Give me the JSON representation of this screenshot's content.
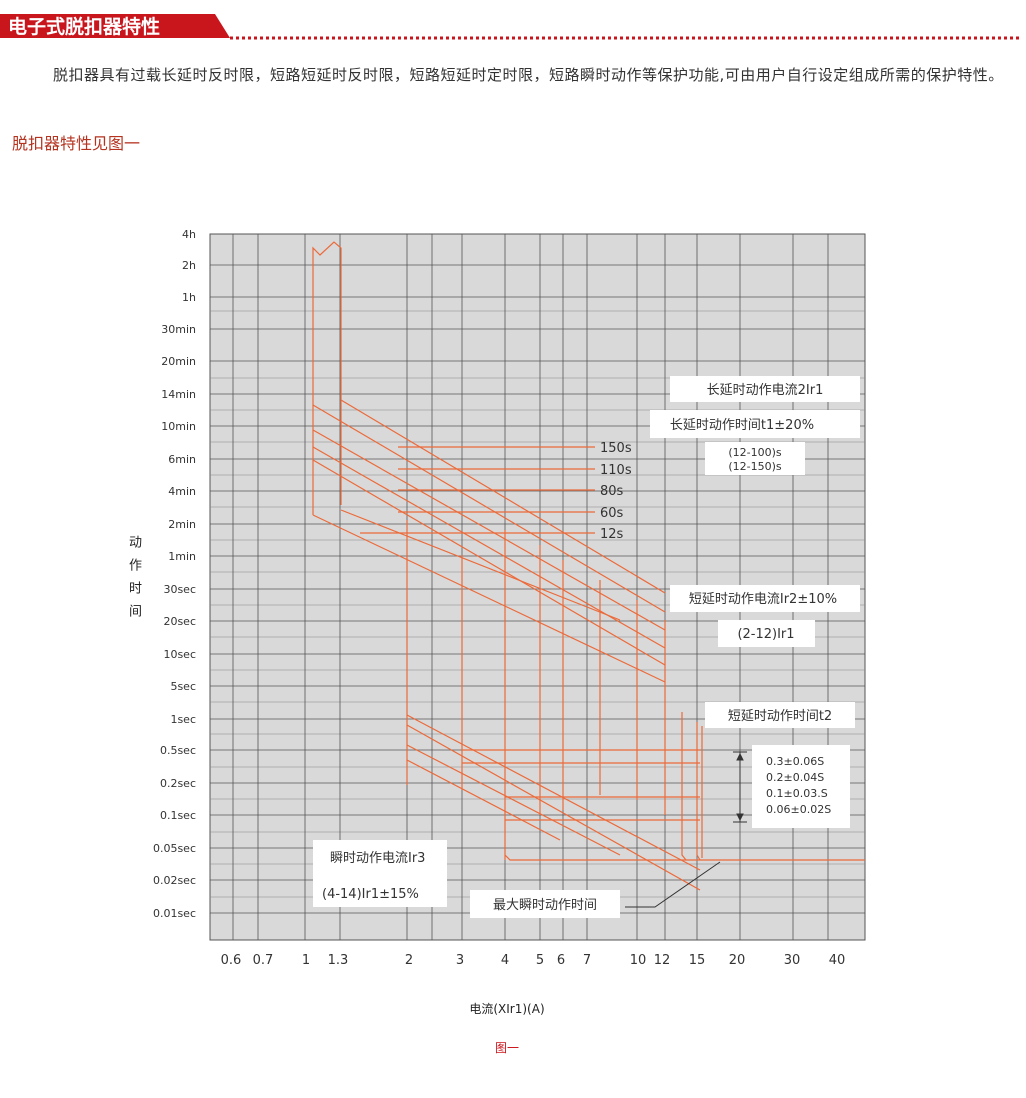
{
  "header": {
    "title": "电子式脱扣器特性"
  },
  "intro": {
    "text": "脱扣器具有过载长延时反时限，短路短延时反时限，短路短延时定时限，短路瞬时动作等保护功能,可由用户自行设定组成所需的保护特性。"
  },
  "figure_reference": "脱扣器特性见图一",
  "figure": {
    "y_axis_title": "动作时间",
    "y_ticks": [
      "4h",
      "2h",
      "1h",
      "30min",
      "20min",
      "14min",
      "10min",
      "6min",
      "4min",
      "2min",
      "1min",
      "30sec",
      "20sec",
      "10sec",
      "5sec",
      "1sec",
      "0.5sec",
      "0.2sec",
      "0.1sec",
      "0.05sec",
      "0.02sec",
      "0.01sec"
    ],
    "x_ticks": [
      "0.6",
      "0.7",
      "1",
      "1.3",
      "2",
      "3",
      "4",
      "5",
      "6",
      "7",
      "10",
      "12",
      "15",
      "20",
      "30",
      "40"
    ],
    "x_axis_title": "电流(XIr1)(A)",
    "caption": "图一",
    "time_settings": [
      "150s",
      "110s",
      "80s",
      "60s",
      "12s"
    ],
    "long_delay_current": "长延时动作电流2Ir1",
    "long_delay_time": "长延时动作时间t1±20%",
    "long_delay_ranges": [
      "(12-100)s",
      "(12-150)s"
    ],
    "short_delay_current": "短延时动作电流Ir2±10%",
    "short_delay_range": "(2-12)Ir1",
    "short_delay_time": "短延时动作时间t2",
    "short_delay_settings": [
      "0.3±0.06S",
      "0.2±0.04S",
      "0.1±0.03.S",
      "0.06±0.02S"
    ],
    "instant_current": "瞬时动作电流Ir3",
    "instant_range": "(4-14)Ir1±15%",
    "max_instant_time": "最大瞬时动作时间"
  }
}
